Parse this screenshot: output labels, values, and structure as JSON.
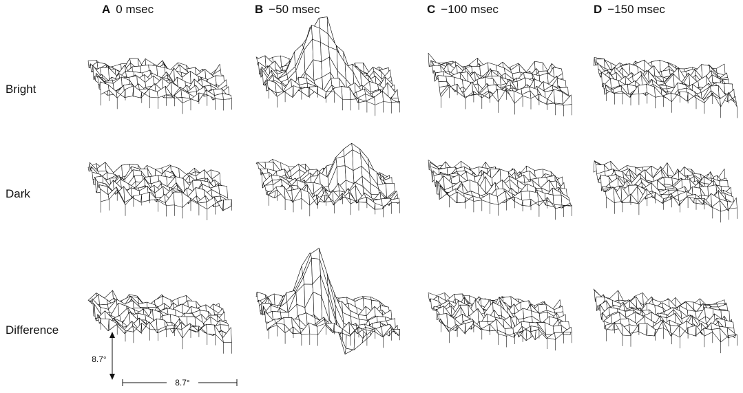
{
  "columns": [
    {
      "letter": "A",
      "label": "0 msec"
    },
    {
      "letter": "B",
      "label": "−50 msec"
    },
    {
      "letter": "C",
      "label": "−100 msec"
    },
    {
      "letter": "D",
      "label": "−150 msec"
    }
  ],
  "rows": [
    {
      "label": "Bright"
    },
    {
      "label": "Dark"
    },
    {
      "label": "Difference"
    }
  ],
  "scale_bar": {
    "vertical_label": "8.7°",
    "horizontal_label": "8.7°"
  },
  "colors": {
    "line": "#111111",
    "fill": "#ffffff"
  }
}
